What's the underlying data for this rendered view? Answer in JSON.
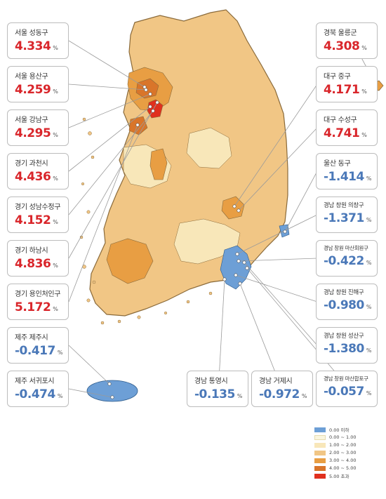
{
  "callouts": [
    {
      "id": "seoul-seongdong",
      "name": "서울 성동구",
      "value": "4.334",
      "unit": "%",
      "tone": "red"
    },
    {
      "id": "seoul-yongsan",
      "name": "서울 용산구",
      "value": "4.259",
      "unit": "%",
      "tone": "red"
    },
    {
      "id": "seoul-gangnam",
      "name": "서울 강남구",
      "value": "4.295",
      "unit": "%",
      "tone": "red"
    },
    {
      "id": "gyeonggi-gwacheon",
      "name": "경기 과천시",
      "value": "4.436",
      "unit": "%",
      "tone": "red"
    },
    {
      "id": "gyeonggi-seongnam-sujeong",
      "name": "경기 성남수정구",
      "value": "4.152",
      "unit": "%",
      "tone": "red"
    },
    {
      "id": "gyeonggi-hanam",
      "name": "경기 하남시",
      "value": "4.836",
      "unit": "%",
      "tone": "red"
    },
    {
      "id": "gyeonggi-yongin-cheoin",
      "name": "경기 용인처인구",
      "value": "5.172",
      "unit": "%",
      "tone": "red"
    },
    {
      "id": "jeju-jeju",
      "name": "제주 제주시",
      "value": "-0.417",
      "unit": "%",
      "tone": "blue"
    },
    {
      "id": "jeju-seogwipo",
      "name": "제주 서귀포시",
      "value": "-0.474",
      "unit": "%",
      "tone": "blue"
    },
    {
      "id": "gyeongbuk-ulleung",
      "name": "경북 울릉군",
      "value": "4.308",
      "unit": "%",
      "tone": "red"
    },
    {
      "id": "daegu-jung",
      "name": "대구 중구",
      "value": "4.171",
      "unit": "%",
      "tone": "red"
    },
    {
      "id": "daegu-suseong",
      "name": "대구 수성구",
      "value": "4.741",
      "unit": "%",
      "tone": "red"
    },
    {
      "id": "ulsan-dong",
      "name": "울산 동구",
      "value": "-1.414",
      "unit": "%",
      "tone": "blue"
    },
    {
      "id": "changwon-uichang",
      "name": "경남 창원 의창구",
      "value": "-1.371",
      "unit": "%",
      "tone": "blue"
    },
    {
      "id": "changwon-masanhoewon",
      "name": "경남 창원 마산회원구",
      "value": "-0.422",
      "unit": "%",
      "tone": "blue"
    },
    {
      "id": "changwon-jinhae",
      "name": "경남 창원 진해구",
      "value": "-0.980",
      "unit": "%",
      "tone": "blue"
    },
    {
      "id": "changwon-seongsan",
      "name": "경남 창원 성산구",
      "value": "-1.380",
      "unit": "%",
      "tone": "blue"
    },
    {
      "id": "gyeongnam-tongyeong",
      "name": "경남 통영시",
      "value": "-0.135",
      "unit": "%",
      "tone": "blue"
    },
    {
      "id": "gyeongnam-geoje",
      "name": "경남 거제시",
      "value": "-0.972",
      "unit": "%",
      "tone": "blue"
    },
    {
      "id": "changwon-masanhappo",
      "name": "경남 창원 마산합포구",
      "value": "-0.057",
      "unit": "%",
      "tone": "blue"
    }
  ],
  "legend": [
    {
      "label": "0.00 이하",
      "color": "#6d9fd6"
    },
    {
      "label": "0.00 ~ 1.00",
      "color": "#fbf6de"
    },
    {
      "label": "1.00 ~ 2.00",
      "color": "#f8e7b9"
    },
    {
      "label": "2.00 ~ 3.00",
      "color": "#f1c685"
    },
    {
      "label": "3.00 ~ 4.00",
      "color": "#e89e43"
    },
    {
      "label": "4.00 ~ 5.00",
      "color": "#d9752a"
    },
    {
      "label": "5.00 초과",
      "color": "#e0301e"
    }
  ],
  "colors": {
    "land": "#f1c685",
    "land_light": "#f8e7b9",
    "land_mid": "#e8a24a",
    "hot": "#e0301e",
    "decline": "#6d9fd6",
    "border": "#8a6a3a",
    "leader": "#9a9a9a",
    "value_red": "#d9262b",
    "value_blue": "#4a78b8"
  }
}
